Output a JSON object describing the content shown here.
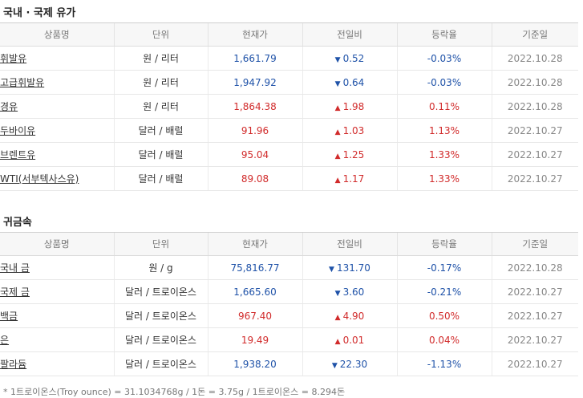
{
  "oil": {
    "title": "국내 · 국제 유가",
    "headers": [
      "상품명",
      "단위",
      "현재가",
      "전일비",
      "등락율",
      "기준일"
    ],
    "rows": [
      {
        "name": "휘발유",
        "unit": "원 / 리터",
        "price": "1,661.79",
        "dir": "down",
        "arrow": "▼",
        "change": "0.52",
        "rate": "-0.03%",
        "date": "2022.10.28"
      },
      {
        "name": "고급휘발유",
        "unit": "원 / 리터",
        "price": "1,947.92",
        "dir": "down",
        "arrow": "▼",
        "change": "0.64",
        "rate": "-0.03%",
        "date": "2022.10.28"
      },
      {
        "name": "경유",
        "unit": "원 / 리터",
        "price": "1,864.38",
        "dir": "up",
        "arrow": "▲",
        "change": "1.98",
        "rate": "0.11%",
        "date": "2022.10.28"
      },
      {
        "name": "두바이유",
        "unit": "달러 / 배럴",
        "price": "91.96",
        "dir": "up",
        "arrow": "▲",
        "change": "1.03",
        "rate": "1.13%",
        "date": "2022.10.27"
      },
      {
        "name": "브렌트유",
        "unit": "달러 / 배럴",
        "price": "95.04",
        "dir": "up",
        "arrow": "▲",
        "change": "1.25",
        "rate": "1.33%",
        "date": "2022.10.27"
      },
      {
        "name": "WTI(서부텍사스유)",
        "unit": "달러 / 배럴",
        "price": "89.08",
        "dir": "up",
        "arrow": "▲",
        "change": "1.17",
        "rate": "1.33%",
        "date": "2022.10.27"
      }
    ]
  },
  "metal": {
    "title": "귀금속",
    "headers": [
      "상품명",
      "단위",
      "현재가",
      "전일비",
      "등락율",
      "기준일"
    ],
    "rows": [
      {
        "name": "국내 금",
        "unit": "원 / g",
        "price": "75,816.77",
        "dir": "down",
        "arrow": "▼",
        "change": "131.70",
        "rate": "-0.17%",
        "date": "2022.10.28"
      },
      {
        "name": "국제 금",
        "unit": "달러 / 트로이온스",
        "price": "1,665.60",
        "dir": "down",
        "arrow": "▼",
        "change": "3.60",
        "rate": "-0.21%",
        "date": "2022.10.27"
      },
      {
        "name": "백금",
        "unit": "달러 / 트로이온스",
        "price": "967.40",
        "dir": "up",
        "arrow": "▲",
        "change": "4.90",
        "rate": "0.50%",
        "date": "2022.10.27"
      },
      {
        "name": "은",
        "unit": "달러 / 트로이온스",
        "price": "19.49",
        "dir": "up",
        "arrow": "▲",
        "change": "0.01",
        "rate": "0.04%",
        "date": "2022.10.27"
      },
      {
        "name": "팔라듐",
        "unit": "달러 / 트로이온스",
        "price": "1,938.20",
        "dir": "down",
        "arrow": "▼",
        "change": "22.30",
        "rate": "-1.13%",
        "date": "2022.10.27"
      }
    ]
  },
  "footnote": "* 1트로이온스(Troy ounce) = 31.1034768g / 1돈 = 3.75g / 1트로이온스 = 8.294돈",
  "colors": {
    "up": "#d12b2b",
    "down": "#1f52a8"
  }
}
